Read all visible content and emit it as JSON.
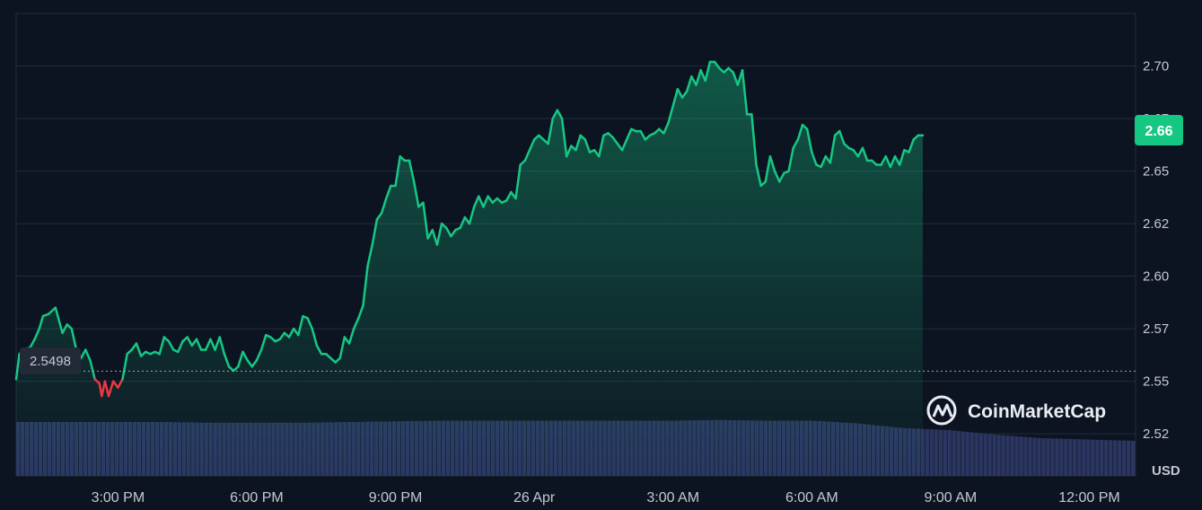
{
  "chart_data": {
    "type": "area",
    "currency": "USD",
    "brand": "CoinMarketCap",
    "current_price_label": "2.66",
    "baseline_label": "2.5498",
    "baseline_value": 2.5498,
    "ylim": [
      2.5,
      2.72
    ],
    "y_ticks": [
      {
        "value": 2.52,
        "label": "2.52"
      },
      {
        "value": 2.545,
        "label": "2.55"
      },
      {
        "value": 2.57,
        "label": "2.57"
      },
      {
        "value": 2.595,
        "label": "2.60"
      },
      {
        "value": 2.62,
        "label": "2.62"
      },
      {
        "value": 2.645,
        "label": "2.65"
      },
      {
        "value": 2.67,
        "label": "2.67"
      },
      {
        "value": 2.695,
        "label": "2.70"
      }
    ],
    "xlim": [
      12.8,
      37.0
    ],
    "x_ticks": [
      {
        "value": 15,
        "label": "3:00 PM"
      },
      {
        "value": 18,
        "label": "6:00 PM"
      },
      {
        "value": 21,
        "label": "9:00 PM"
      },
      {
        "value": 24,
        "label": "26 Apr"
      },
      {
        "value": 27,
        "label": "3:00 AM"
      },
      {
        "value": 30,
        "label": "6:00 AM"
      },
      {
        "value": 33,
        "label": "9:00 AM"
      },
      {
        "value": 36,
        "label": "12:00 PM"
      }
    ],
    "grid": true,
    "colors": {
      "up_line": "#16c784",
      "down_line": "#ea3943",
      "volume": "#2b3661",
      "grid": "#232b3b",
      "badge": "#16c784"
    },
    "price_series": [
      [
        12.8,
        2.546
      ],
      [
        12.87,
        2.558
      ],
      [
        12.95,
        2.56
      ],
      [
        13.1,
        2.561
      ],
      [
        13.2,
        2.565
      ],
      [
        13.3,
        2.57
      ],
      [
        13.38,
        2.576
      ],
      [
        13.5,
        2.577
      ],
      [
        13.65,
        2.58
      ],
      [
        13.8,
        2.568
      ],
      [
        13.9,
        2.572
      ],
      [
        14.0,
        2.57
      ],
      [
        14.1,
        2.56
      ],
      [
        14.2,
        2.556
      ],
      [
        14.3,
        2.56
      ],
      [
        14.4,
        2.555
      ],
      [
        14.5,
        2.546
      ],
      [
        14.6,
        2.544
      ],
      [
        14.65,
        2.538
      ],
      [
        14.72,
        2.545
      ],
      [
        14.8,
        2.538
      ],
      [
        14.9,
        2.545
      ],
      [
        15.0,
        2.542
      ],
      [
        15.1,
        2.546
      ],
      [
        15.2,
        2.558
      ],
      [
        15.3,
        2.56
      ],
      [
        15.4,
        2.563
      ],
      [
        15.5,
        2.557
      ],
      [
        15.6,
        2.559
      ],
      [
        15.7,
        2.558
      ],
      [
        15.8,
        2.559
      ],
      [
        15.9,
        2.558
      ],
      [
        16.0,
        2.566
      ],
      [
        16.1,
        2.564
      ],
      [
        16.2,
        2.56
      ],
      [
        16.3,
        2.559
      ],
      [
        16.4,
        2.564
      ],
      [
        16.5,
        2.566
      ],
      [
        16.6,
        2.562
      ],
      [
        16.7,
        2.565
      ],
      [
        16.8,
        2.56
      ],
      [
        16.9,
        2.56
      ],
      [
        17.0,
        2.565
      ],
      [
        17.1,
        2.56
      ],
      [
        17.2,
        2.566
      ],
      [
        17.3,
        2.558
      ],
      [
        17.4,
        2.552
      ],
      [
        17.5,
        2.55
      ],
      [
        17.6,
        2.552
      ],
      [
        17.7,
        2.559
      ],
      [
        17.8,
        2.555
      ],
      [
        17.9,
        2.552
      ],
      [
        18.0,
        2.555
      ],
      [
        18.1,
        2.56
      ],
      [
        18.2,
        2.567
      ],
      [
        18.3,
        2.566
      ],
      [
        18.4,
        2.564
      ],
      [
        18.5,
        2.565
      ],
      [
        18.6,
        2.568
      ],
      [
        18.7,
        2.566
      ],
      [
        18.8,
        2.57
      ],
      [
        18.9,
        2.567
      ],
      [
        19.0,
        2.576
      ],
      [
        19.1,
        2.575
      ],
      [
        19.2,
        2.57
      ],
      [
        19.3,
        2.562
      ],
      [
        19.4,
        2.558
      ],
      [
        19.5,
        2.558
      ],
      [
        19.6,
        2.556
      ],
      [
        19.7,
        2.554
      ],
      [
        19.8,
        2.556
      ],
      [
        19.9,
        2.566
      ],
      [
        20.0,
        2.563
      ],
      [
        20.1,
        2.57
      ],
      [
        20.2,
        2.575
      ],
      [
        20.3,
        2.581
      ],
      [
        20.4,
        2.6
      ],
      [
        20.5,
        2.61
      ],
      [
        20.6,
        2.622
      ],
      [
        20.7,
        2.625
      ],
      [
        20.8,
        2.632
      ],
      [
        20.9,
        2.638
      ],
      [
        21.0,
        2.638
      ],
      [
        21.1,
        2.652
      ],
      [
        21.2,
        2.65
      ],
      [
        21.3,
        2.65
      ],
      [
        21.4,
        2.64
      ],
      [
        21.5,
        2.628
      ],
      [
        21.6,
        2.63
      ],
      [
        21.7,
        2.613
      ],
      [
        21.8,
        2.617
      ],
      [
        21.9,
        2.61
      ],
      [
        22.0,
        2.62
      ],
      [
        22.1,
        2.618
      ],
      [
        22.2,
        2.614
      ],
      [
        22.3,
        2.617
      ],
      [
        22.4,
        2.618
      ],
      [
        22.5,
        2.623
      ],
      [
        22.6,
        2.62
      ],
      [
        22.7,
        2.628
      ],
      [
        22.8,
        2.633
      ],
      [
        22.9,
        2.628
      ],
      [
        23.0,
        2.633
      ],
      [
        23.1,
        2.63
      ],
      [
        23.2,
        2.632
      ],
      [
        23.3,
        2.63
      ],
      [
        23.4,
        2.631
      ],
      [
        23.5,
        2.635
      ],
      [
        23.6,
        2.632
      ],
      [
        23.7,
        2.648
      ],
      [
        23.8,
        2.65
      ],
      [
        23.9,
        2.655
      ],
      [
        24.0,
        2.66
      ],
      [
        24.1,
        2.662
      ],
      [
        24.2,
        2.66
      ],
      [
        24.3,
        2.658
      ],
      [
        24.4,
        2.67
      ],
      [
        24.5,
        2.674
      ],
      [
        24.6,
        2.67
      ],
      [
        24.7,
        2.652
      ],
      [
        24.8,
        2.657
      ],
      [
        24.9,
        2.655
      ],
      [
        25.0,
        2.662
      ],
      [
        25.1,
        2.66
      ],
      [
        25.2,
        2.654
      ],
      [
        25.3,
        2.655
      ],
      [
        25.4,
        2.652
      ],
      [
        25.5,
        2.662
      ],
      [
        25.6,
        2.663
      ],
      [
        25.7,
        2.661
      ],
      [
        25.8,
        2.658
      ],
      [
        25.9,
        2.655
      ],
      [
        26.0,
        2.66
      ],
      [
        26.1,
        2.665
      ],
      [
        26.2,
        2.664
      ],
      [
        26.3,
        2.664
      ],
      [
        26.4,
        2.66
      ],
      [
        26.5,
        2.662
      ],
      [
        26.6,
        2.663
      ],
      [
        26.7,
        2.665
      ],
      [
        26.8,
        2.663
      ],
      [
        26.9,
        2.668
      ],
      [
        27.0,
        2.676
      ],
      [
        27.1,
        2.684
      ],
      [
        27.2,
        2.68
      ],
      [
        27.3,
        2.683
      ],
      [
        27.4,
        2.69
      ],
      [
        27.5,
        2.686
      ],
      [
        27.6,
        2.693
      ],
      [
        27.7,
        2.688
      ],
      [
        27.8,
        2.697
      ],
      [
        27.9,
        2.697
      ],
      [
        28.0,
        2.694
      ],
      [
        28.1,
        2.692
      ],
      [
        28.2,
        2.694
      ],
      [
        28.3,
        2.692
      ],
      [
        28.4,
        2.686
      ],
      [
        28.5,
        2.693
      ],
      [
        28.6,
        2.672
      ],
      [
        28.7,
        2.672
      ],
      [
        28.8,
        2.648
      ],
      [
        28.9,
        2.638
      ],
      [
        29.0,
        2.64
      ],
      [
        29.1,
        2.652
      ],
      [
        29.2,
        2.645
      ],
      [
        29.3,
        2.64
      ],
      [
        29.4,
        2.644
      ],
      [
        29.5,
        2.645
      ],
      [
        29.6,
        2.656
      ],
      [
        29.7,
        2.66
      ],
      [
        29.8,
        2.667
      ],
      [
        29.9,
        2.665
      ],
      [
        30.0,
        2.654
      ],
      [
        30.1,
        2.648
      ],
      [
        30.2,
        2.647
      ],
      [
        30.3,
        2.652
      ],
      [
        30.4,
        2.649
      ],
      [
        30.5,
        2.662
      ],
      [
        30.6,
        2.664
      ],
      [
        30.7,
        2.658
      ],
      [
        30.8,
        2.656
      ],
      [
        30.9,
        2.655
      ],
      [
        31.0,
        2.652
      ],
      [
        31.1,
        2.656
      ],
      [
        31.2,
        2.65
      ],
      [
        31.3,
        2.65
      ],
      [
        31.4,
        2.648
      ],
      [
        31.5,
        2.648
      ],
      [
        31.6,
        2.652
      ],
      [
        31.7,
        2.647
      ],
      [
        31.8,
        2.652
      ],
      [
        31.9,
        2.648
      ],
      [
        32.0,
        2.655
      ],
      [
        32.1,
        2.654
      ],
      [
        32.2,
        2.66
      ],
      [
        32.3,
        2.662
      ],
      [
        32.4,
        2.662
      ]
    ],
    "volume_series": [
      [
        12.8,
        0.8
      ],
      [
        13.0,
        0.8
      ],
      [
        14.0,
        0.8
      ],
      [
        15.0,
        0.8
      ],
      [
        16.0,
        0.8
      ],
      [
        17.0,
        0.79
      ],
      [
        18.0,
        0.79
      ],
      [
        19.0,
        0.79
      ],
      [
        20.0,
        0.8
      ],
      [
        21.0,
        0.81
      ],
      [
        22.0,
        0.82
      ],
      [
        23.0,
        0.82
      ],
      [
        24.0,
        0.82
      ],
      [
        25.0,
        0.82
      ],
      [
        26.0,
        0.82
      ],
      [
        27.0,
        0.82
      ],
      [
        28.0,
        0.83
      ],
      [
        29.0,
        0.82
      ],
      [
        30.0,
        0.82
      ],
      [
        31.0,
        0.78
      ],
      [
        32.0,
        0.71
      ],
      [
        33.0,
        0.68
      ],
      [
        34.0,
        0.61
      ],
      [
        35.0,
        0.56
      ],
      [
        36.0,
        0.54
      ],
      [
        37.0,
        0.52
      ]
    ]
  }
}
